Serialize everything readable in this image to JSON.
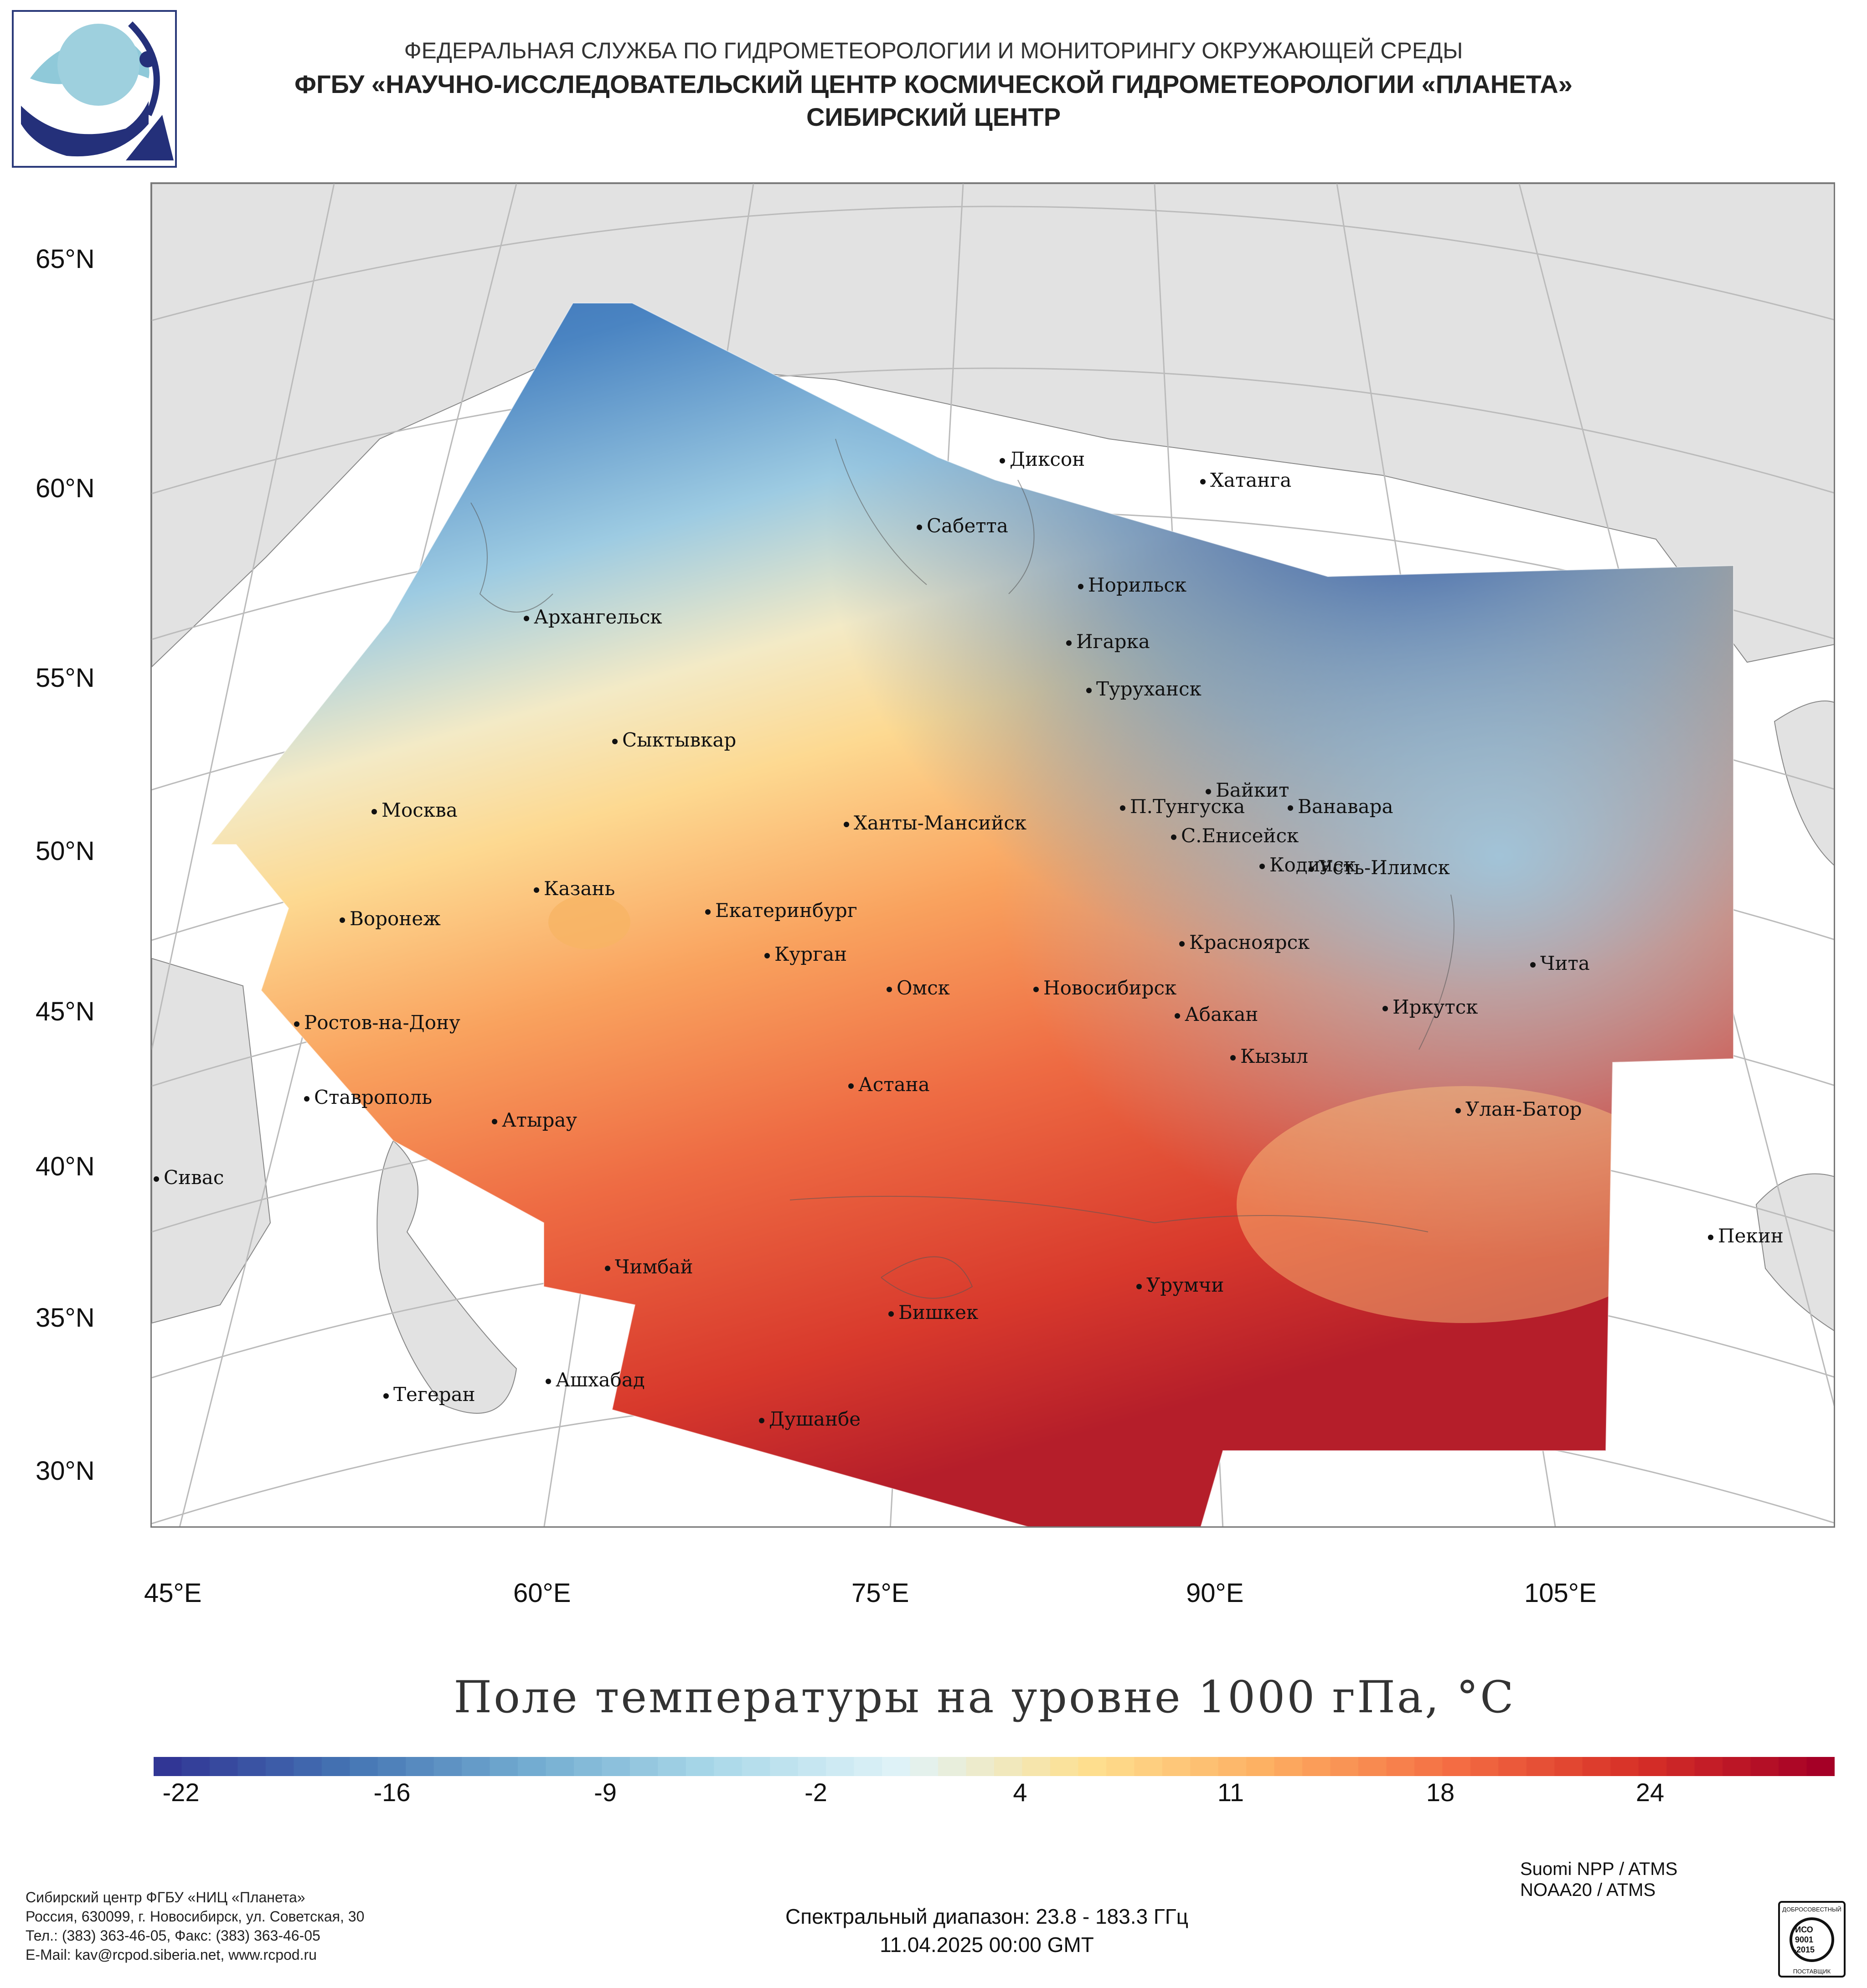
{
  "header": {
    "org": "ФЕДЕРАЛЬНАЯ СЛУЖБА ПО ГИДРОМЕТЕОРОЛОГИИ И МОНИТОРИНГУ ОКРУЖАЮЩЕЙ СРЕДЫ",
    "institution": "ФГБУ «НАУЧНО-ИССЛЕДОВАТЕЛЬСКИЙ ЦЕНТР КОСМИЧЕСКОЙ ГИДРОМЕТЕОРОЛОГИИ «ПЛАНЕТА»",
    "center": "СИБИРСКИЙ ЦЕНТР"
  },
  "map": {
    "lat_labels": [
      "65°N",
      "60°N",
      "55°N",
      "50°N",
      "45°N",
      "40°N",
      "35°N",
      "30°N"
    ],
    "lon_labels": [
      "45°E",
      "60°E",
      "75°E",
      "90°E",
      "105°E"
    ],
    "cities": [
      {
        "name": "Диксон"
      },
      {
        "name": "Хатанга"
      },
      {
        "name": "Сабетта"
      },
      {
        "name": "Норильск"
      },
      {
        "name": "Архангельск"
      },
      {
        "name": "Игарка"
      },
      {
        "name": "Туруханск"
      },
      {
        "name": "Сыктывкар"
      },
      {
        "name": "Байкит"
      },
      {
        "name": "П.Тунгуска"
      },
      {
        "name": "Ванавара"
      },
      {
        "name": "Москва"
      },
      {
        "name": "Ханты-Мансийск"
      },
      {
        "name": "С.Енисейск"
      },
      {
        "name": "Кодинск"
      },
      {
        "name": "Усть-Илимск"
      },
      {
        "name": "Казань"
      },
      {
        "name": "Воронеж"
      },
      {
        "name": "Екатеринбург"
      },
      {
        "name": "Красноярск"
      },
      {
        "name": "Курган"
      },
      {
        "name": "Чита"
      },
      {
        "name": "Омск"
      },
      {
        "name": "Новосибирск"
      },
      {
        "name": "Ростов-на-Дону"
      },
      {
        "name": "Абакан"
      },
      {
        "name": "Иркутск"
      },
      {
        "name": "Кызыл"
      },
      {
        "name": "Астана"
      },
      {
        "name": "Ставрополь"
      },
      {
        "name": "Улан-Батор"
      },
      {
        "name": "Атырау"
      },
      {
        "name": "Сивас"
      },
      {
        "name": "Пекин"
      },
      {
        "name": "Чимбай"
      },
      {
        "name": "Урумчи"
      },
      {
        "name": "Бишкек"
      },
      {
        "name": "Ашхабад"
      },
      {
        "name": "Тегеран"
      },
      {
        "name": "Душанбе"
      }
    ]
  },
  "title": "Поле температуры на уровне 1000 гПа, °С",
  "colorbar": {
    "ticks": [
      "-22",
      "-16",
      "-9",
      "-2",
      "4",
      "11",
      "18",
      "24"
    ],
    "colors": [
      "#313695",
      "#4575b4",
      "#74add1",
      "#abd9e9",
      "#e0f3f8",
      "#fee090",
      "#fdae61",
      "#f46d43",
      "#d73027",
      "#a50026"
    ]
  },
  "footer": {
    "line1": "Сибирский центр ФГБУ «НИЦ «Планета»",
    "line2": "Россия, 630099, г. Новосибирск, ул. Советская, 30",
    "line3": "Тел.: (383) 363-46-05, Факс: (383) 363-46-05",
    "line4": "E-Mail: kav@rcpod.siberia.net, www.rcpod.ru",
    "sensor1": "Suomi NPP / ATMS",
    "sensor2": "NOAA20 / ATMS",
    "spectral": "Спектральный диапазон: 23.8 - 183.3 ГГц",
    "datetime": "11.04.2025 00:00 GMT"
  },
  "iso": {
    "top": "ДОБРОСОВЕСТНЫЙ",
    "line1": "ИСО",
    "line2": "9001",
    "line3": "-2015",
    "bottom": "ПОСТАВЩИК"
  }
}
